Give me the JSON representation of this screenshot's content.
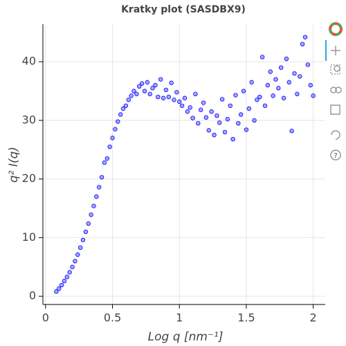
{
  "chart_data": {
    "type": "scatter",
    "title": "Kratky plot (SASDBX9)",
    "x_label": "Log q [nm⁻¹]",
    "y_label": "q² I(q)",
    "color": "#0000ff",
    "xlim": [
      -0.02,
      2.09
    ],
    "ylim": [
      -1.4,
      46.4
    ],
    "xticks": [
      0,
      0.5,
      1,
      1.5,
      2
    ],
    "yticks": [
      0,
      10,
      20,
      30,
      40
    ],
    "grid": true,
    "x": [
      0.08,
      0.1,
      0.12,
      0.14,
      0.16,
      0.18,
      0.2,
      0.22,
      0.24,
      0.26,
      0.28,
      0.3,
      0.32,
      0.34,
      0.36,
      0.38,
      0.4,
      0.42,
      0.44,
      0.46,
      0.48,
      0.5,
      0.52,
      0.54,
      0.56,
      0.58,
      0.6,
      0.62,
      0.64,
      0.66,
      0.68,
      0.7,
      0.72,
      0.74,
      0.76,
      0.78,
      0.8,
      0.82,
      0.84,
      0.86,
      0.88,
      0.9,
      0.92,
      0.94,
      0.96,
      0.98,
      1.0,
      1.02,
      1.04,
      1.06,
      1.08,
      1.1,
      1.12,
      1.14,
      1.16,
      1.18,
      1.2,
      1.22,
      1.24,
      1.26,
      1.28,
      1.3,
      1.32,
      1.34,
      1.36,
      1.38,
      1.4,
      1.42,
      1.44,
      1.46,
      1.48,
      1.5,
      1.52,
      1.54,
      1.56,
      1.58,
      1.6,
      1.62,
      1.64,
      1.66,
      1.68,
      1.7,
      1.72,
      1.74,
      1.76,
      1.78,
      1.8,
      1.82,
      1.84,
      1.86,
      1.88,
      1.9,
      1.92,
      1.94,
      1.96,
      1.98,
      2.0
    ],
    "values": [
      0.8,
      1.3,
      1.9,
      2.6,
      3.3,
      4.1,
      5.0,
      6.0,
      7.1,
      8.3,
      9.6,
      11.0,
      12.4,
      13.9,
      15.4,
      17.0,
      18.6,
      20.3,
      22.8,
      23.5,
      25.5,
      27.0,
      28.5,
      29.8,
      31.0,
      32.0,
      32.5,
      33.5,
      34.2,
      35.0,
      34.5,
      35.8,
      36.3,
      35.0,
      36.5,
      34.5,
      35.5,
      36.0,
      34.0,
      37.0,
      33.8,
      35.2,
      34.0,
      36.4,
      33.5,
      34.8,
      33.2,
      32.5,
      33.8,
      31.5,
      32.2,
      30.4,
      34.5,
      29.5,
      31.8,
      33.0,
      30.5,
      28.3,
      31.5,
      27.5,
      30.8,
      29.6,
      33.6,
      28.0,
      30.2,
      32.5,
      26.8,
      34.3,
      29.5,
      31.0,
      35.0,
      28.4,
      32.0,
      36.5,
      30.0,
      33.5,
      34.0,
      40.8,
      32.5,
      36.0,
      38.3,
      34.2,
      37.0,
      35.5,
      39.0,
      33.8,
      40.5,
      36.5,
      28.2,
      38.0,
      34.5,
      37.5,
      43.0,
      44.2,
      39.5,
      36.0,
      34.2
    ]
  }
}
